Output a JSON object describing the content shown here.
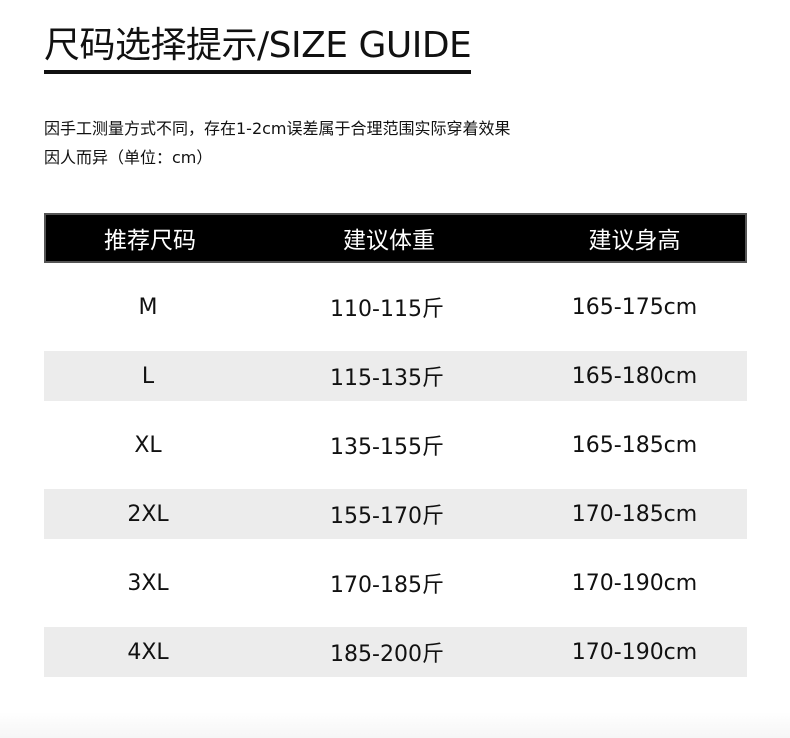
{
  "title": "尺码选择提示/SIZE GUIDE",
  "note": [
    "因手工测量方式不同，存在1-2cm误差属于合理范围实际穿着效果",
    "因人而异（单位：cm）"
  ],
  "table": {
    "headers": [
      "推荐尺码",
      "建议体重",
      "建议身高"
    ],
    "rows": [
      [
        "M",
        "110-115斤",
        "165-175cm"
      ],
      [
        "L",
        "115-135斤",
        "165-180cm"
      ],
      [
        "XL",
        "135-155斤",
        "165-185cm"
      ],
      [
        "2XL",
        "155-170斤",
        "170-185cm"
      ],
      [
        "3XL",
        "170-185斤",
        "170-190cm"
      ],
      [
        "4XL",
        "185-200斤",
        "170-190cm"
      ]
    ]
  },
  "colors": {
    "header_bg": "#000000",
    "stripe": "#ececec"
  }
}
